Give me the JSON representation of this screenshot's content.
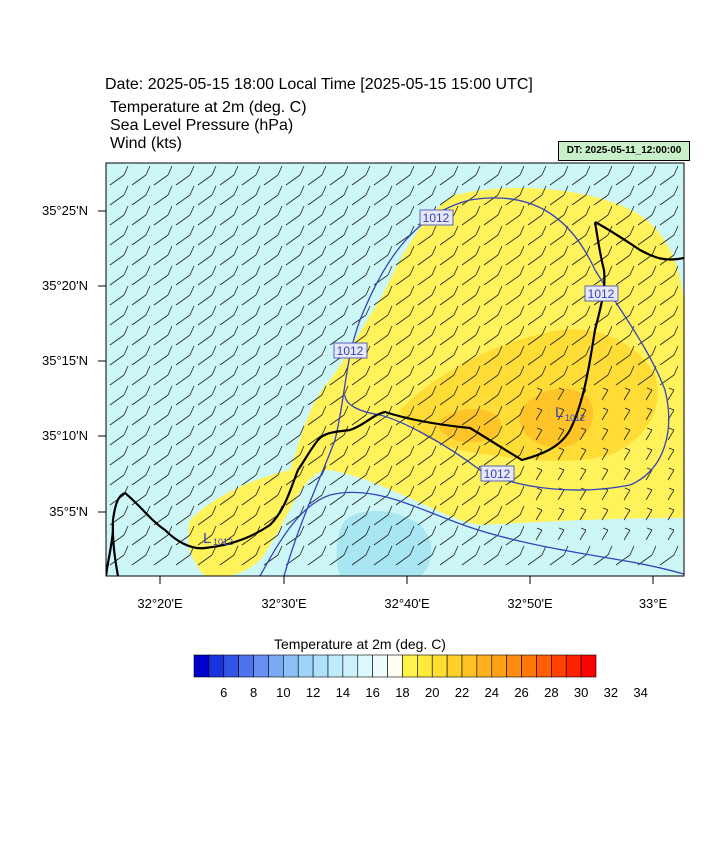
{
  "header": {
    "title": "Date: 2025-05-15  18:00 Local Time [2025-05-15  15:00 UTC]",
    "fields": [
      "Temperature at 2m   (deg. C)",
      "Sea Level Pressure   (hPa)",
      "Wind   (kts)"
    ],
    "dt_badge": "DT: 2025-05-11_12:00:00"
  },
  "map": {
    "lat_labels": [
      "35°25'N",
      "35°20'N",
      "35°15'N",
      "35°10'N",
      "35°5'N"
    ],
    "lon_labels": [
      "32°20'E",
      "32°30'E",
      "32°40'E",
      "32°50'E",
      "33°E"
    ],
    "isobar_labels": [
      "1012",
      "1012",
      "1012",
      "1012"
    ],
    "low_marker": "L",
    "low_values": [
      "1012",
      "1012"
    ],
    "isobar_color": "#3344bb",
    "coast_color": "#000000"
  },
  "colorbar": {
    "title": "Temperature at 2m  (deg. C)",
    "labels": [
      "6",
      "8",
      "10",
      "12",
      "14",
      "16",
      "18",
      "20",
      "22",
      "24",
      "26",
      "28",
      "30",
      "32",
      "34"
    ],
    "colors": [
      "#0000cc",
      "#1a33dd",
      "#3355e6",
      "#4f72ee",
      "#6690f2",
      "#7aa9f5",
      "#8cc0f7",
      "#9ed4f9",
      "#aee2fb",
      "#bdebfc",
      "#ccf2fd",
      "#ddf8fd",
      "#eefcfe",
      "#fffff0",
      "#fff24d",
      "#ffe93a",
      "#ffde30",
      "#ffd028",
      "#ffc222",
      "#ffb21c",
      "#ffa015",
      "#ff8c0e",
      "#ff7708",
      "#ff5e04",
      "#ff4202",
      "#ff2200",
      "#ff0000"
    ]
  }
}
